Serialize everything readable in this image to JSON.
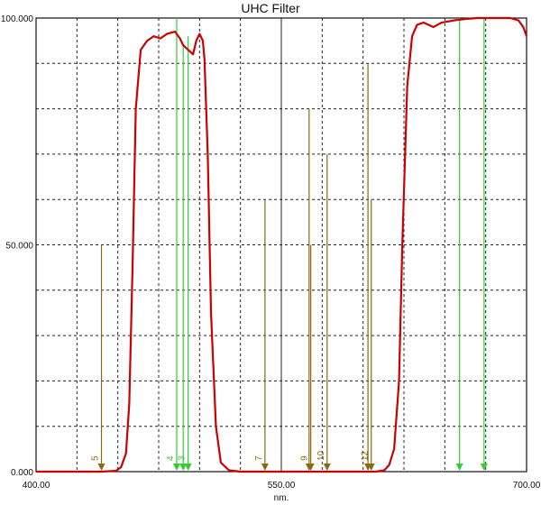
{
  "chart_data": {
    "type": "line",
    "title": "UHC Filter",
    "xlabel": "nm.",
    "ylabel": "",
    "xlim": [
      400,
      700
    ],
    "ylim": [
      0,
      100
    ],
    "x_ticks": [
      "400.00",
      "550.00",
      "700.00"
    ],
    "y_ticks": [
      "0.000",
      "50.000",
      "100.000"
    ],
    "grid": true,
    "series": [
      {
        "x": [
          400,
          420,
          440,
          449,
          452,
          455,
          457,
          459,
          461,
          464,
          468,
          472,
          476,
          480,
          485,
          488,
          490,
          493,
          496,
          498,
          500,
          502,
          503,
          505,
          507,
          510,
          513,
          518,
          525,
          540,
          560,
          580,
          595,
          608,
          613,
          616,
          619,
          622,
          624,
          627,
          630,
          633,
          637,
          643,
          648,
          656,
          663,
          670,
          680,
          690,
          695,
          698,
          700
        ],
        "y": [
          0,
          0,
          0,
          0.2,
          1,
          4,
          15,
          45,
          80,
          93,
          95,
          96,
          95.5,
          96.5,
          97,
          95.5,
          94,
          93,
          92,
          95,
          96.5,
          95,
          91,
          70,
          35,
          10,
          2,
          0.3,
          0,
          0,
          0,
          0,
          0,
          0,
          0.3,
          1.5,
          5,
          20,
          50,
          85,
          96,
          98.5,
          99,
          98,
          99,
          99.5,
          99.8,
          100,
          100,
          100,
          99.5,
          98,
          96
        ],
        "color": "#cc0000"
      }
    ],
    "markers": [
      {
        "label": "5",
        "x": 440,
        "top": 50,
        "color": "#8b6914"
      },
      {
        "label": "4",
        "x": 486,
        "top": 100,
        "color": "#33cc33"
      },
      {
        "label": "",
        "x": 490,
        "top": 94,
        "color": "#33cc33"
      },
      {
        "label": "3",
        "x": 493,
        "top": 96,
        "color": "#33cc33"
      },
      {
        "label": "7",
        "x": 540,
        "top": 60,
        "color": "#8b6914"
      },
      {
        "label": "",
        "x": 567,
        "top": 80,
        "color": "#8b6914"
      },
      {
        "label": "9",
        "x": 568,
        "top": 50,
        "color": "#8b6914"
      },
      {
        "label": "10",
        "x": 578,
        "top": 70,
        "color": "#8b6914"
      },
      {
        "label": "",
        "x": 603,
        "top": 90,
        "color": "#8b6914"
      },
      {
        "label": "12",
        "x": 605,
        "top": 60,
        "color": "#8b6914"
      },
      {
        "label": "",
        "x": 659,
        "top": 100,
        "color": "#33cc33"
      },
      {
        "label": "",
        "x": 674,
        "top": 100,
        "color": "#33cc33"
      }
    ]
  }
}
